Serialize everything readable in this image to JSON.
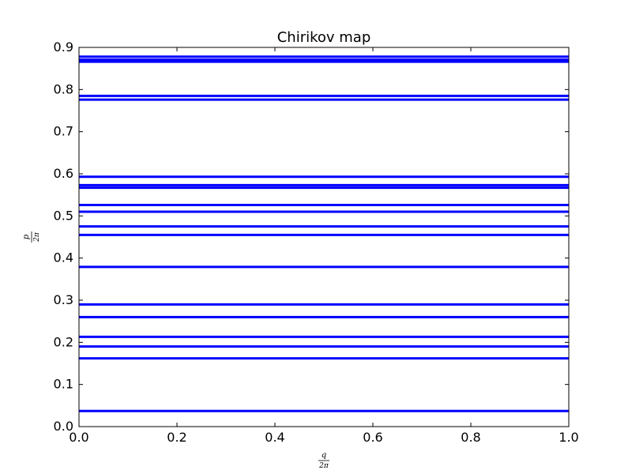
{
  "chart_data": {
    "type": "line",
    "title": "Chirikov map",
    "xlabel": {
      "numerator": "q",
      "denominator": "2π"
    },
    "ylabel": {
      "numerator": "p",
      "denominator": "2π"
    },
    "xlim": [
      0.0,
      1.0
    ],
    "ylim": [
      0.0,
      0.9
    ],
    "xticks": [
      "0.0",
      "0.2",
      "0.4",
      "0.6",
      "0.8",
      "1.0"
    ],
    "yticks": [
      "0.0",
      "0.1",
      "0.2",
      "0.3",
      "0.4",
      "0.5",
      "0.6",
      "0.7",
      "0.8",
      "0.9"
    ],
    "grid": false,
    "series_color": "#0000ff",
    "lines_y": [
      0.037,
      0.162,
      0.19,
      0.213,
      0.26,
      0.29,
      0.379,
      0.455,
      0.475,
      0.51,
      0.526,
      0.567,
      0.573,
      0.593,
      0.776,
      0.785,
      0.866,
      0.871,
      0.878
    ]
  }
}
